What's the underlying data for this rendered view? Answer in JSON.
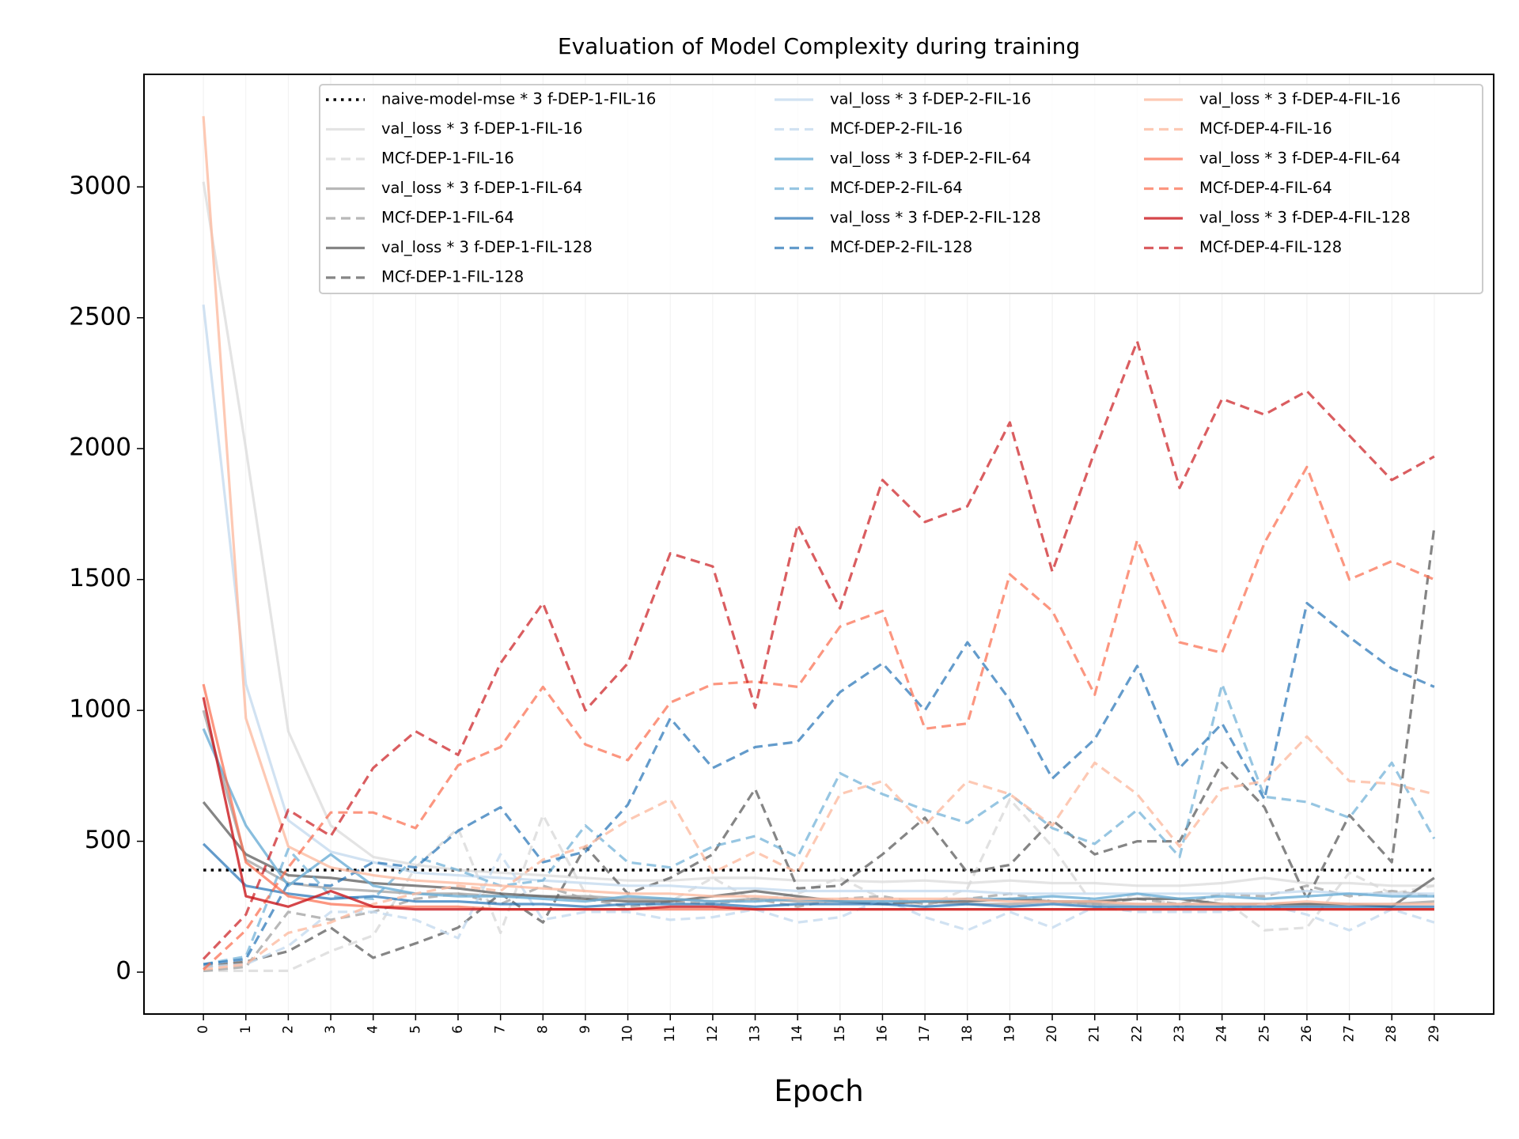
{
  "chart_data": {
    "type": "line",
    "title": "Evaluation of Model Complexity during training",
    "xlabel": "Epoch",
    "ylabel": "",
    "x": [
      0,
      1,
      2,
      3,
      4,
      5,
      6,
      7,
      8,
      9,
      10,
      11,
      12,
      13,
      14,
      15,
      16,
      17,
      18,
      19,
      20,
      21,
      22,
      23,
      24,
      25,
      26,
      27,
      28,
      29
    ],
    "xlim": [
      -1.4,
      30.4
    ],
    "ylim": [
      -160,
      3430
    ],
    "yticks": [
      0,
      500,
      1000,
      1500,
      2000,
      2500,
      3000
    ],
    "grid": "vertical",
    "legend_position": "upper-right",
    "legend_columns": 3,
    "series": [
      {
        "name": "naive-model-mse * 3 f-DEP-1-FIL-16",
        "color": "#000000",
        "dash": "dotted",
        "alpha": 1.0,
        "values": [
          390,
          390,
          390,
          390,
          390,
          390,
          390,
          390,
          390,
          390,
          390,
          390,
          390,
          390,
          390,
          390,
          390,
          390,
          390,
          390,
          390,
          390,
          390,
          390,
          390,
          390,
          390,
          390,
          390,
          390
        ]
      },
      {
        "name": "val_loss * 3 f-DEP-1-FIL-16",
        "color": "#d9d9d9",
        "dash": "solid",
        "alpha": 0.7,
        "values": [
          3020,
          2000,
          920,
          560,
          440,
          410,
          390,
          380,
          370,
          360,
          350,
          350,
          360,
          360,
          350,
          350,
          345,
          350,
          340,
          350,
          340,
          340,
          330,
          330,
          340,
          360,
          340,
          340,
          330,
          330
        ]
      },
      {
        "name": "MCf-DEP-1-FIL-16",
        "color": "#d9d9d9",
        "dash": "dashed",
        "alpha": 0.8,
        "values": [
          5,
          5,
          5,
          80,
          140,
          400,
          550,
          150,
          600,
          300,
          240,
          270,
          360,
          270,
          300,
          360,
          280,
          250,
          320,
          660,
          480,
          250,
          300,
          250,
          280,
          160,
          170,
          380,
          300,
          330
        ]
      },
      {
        "name": "val_loss * 3 f-DEP-1-FIL-64",
        "color": "#a6a6a6",
        "dash": "solid",
        "alpha": 0.8,
        "values": [
          1000,
          430,
          340,
          320,
          310,
          300,
          300,
          290,
          290,
          290,
          280,
          280,
          270,
          280,
          270,
          270,
          270,
          270,
          260,
          260,
          270,
          260,
          260,
          260,
          260,
          260,
          260,
          260,
          260,
          270
        ]
      },
      {
        "name": "MCf-DEP-1-FIL-64",
        "color": "#a6a6a6",
        "dash": "dashed",
        "alpha": 0.8,
        "values": [
          5,
          20,
          230,
          200,
          230,
          280,
          300,
          260,
          330,
          280,
          250,
          270,
          260,
          280,
          250,
          280,
          290,
          260,
          280,
          300,
          270,
          260,
          280,
          260,
          300,
          290,
          330,
          290,
          310,
          290
        ]
      },
      {
        "name": "val_loss * 3 f-DEP-1-FIL-128",
        "color": "#666666",
        "dash": "solid",
        "alpha": 0.8,
        "values": [
          650,
          450,
          370,
          360,
          340,
          330,
          320,
          300,
          290,
          280,
          270,
          270,
          290,
          310,
          290,
          270,
          260,
          270,
          270,
          280,
          270,
          270,
          280,
          280,
          260,
          260,
          260,
          260,
          250,
          360
        ]
      },
      {
        "name": "MCf-DEP-1-FIL-128",
        "color": "#666666",
        "dash": "dashed",
        "alpha": 0.8,
        "values": [
          20,
          40,
          80,
          170,
          55,
          110,
          170,
          300,
          190,
          480,
          300,
          360,
          450,
          700,
          320,
          330,
          450,
          590,
          380,
          410,
          580,
          450,
          500,
          500,
          800,
          630,
          280,
          600,
          420,
          1700
        ]
      },
      {
        "name": "val_loss * 3 f-DEP-2-FIL-16",
        "color": "#c6dbef",
        "dash": "solid",
        "alpha": 0.8,
        "values": [
          2550,
          1100,
          580,
          460,
          420,
          380,
          370,
          360,
          350,
          340,
          330,
          330,
          320,
          320,
          310,
          310,
          310,
          310,
          310,
          300,
          300,
          300,
          300,
          300,
          300,
          300,
          310,
          300,
          300,
          300
        ]
      },
      {
        "name": "MCf-DEP-2-FIL-16",
        "color": "#c6dbef",
        "dash": "dashed",
        "alpha": 0.8,
        "values": [
          20,
          30,
          100,
          230,
          230,
          200,
          130,
          450,
          200,
          230,
          230,
          200,
          210,
          240,
          190,
          210,
          280,
          210,
          160,
          230,
          170,
          250,
          230,
          230,
          230,
          260,
          220,
          160,
          240,
          190
        ]
      },
      {
        "name": "val_loss * 3 f-DEP-2-FIL-64",
        "color": "#6baed6",
        "dash": "solid",
        "alpha": 0.8,
        "values": [
          930,
          560,
          330,
          450,
          330,
          300,
          290,
          290,
          280,
          270,
          290,
          280,
          270,
          270,
          280,
          270,
          270,
          270,
          280,
          280,
          290,
          280,
          300,
          280,
          290,
          280,
          290,
          300,
          290,
          290
        ]
      },
      {
        "name": "MCf-DEP-2-FIL-64",
        "color": "#6baed6",
        "dash": "dashed",
        "alpha": 0.7,
        "values": [
          30,
          60,
          470,
          290,
          280,
          440,
          390,
          330,
          350,
          560,
          420,
          400,
          480,
          520,
          440,
          760,
          680,
          620,
          570,
          680,
          550,
          490,
          620,
          440,
          1100,
          670,
          650,
          590,
          800,
          510
        ]
      },
      {
        "name": "val_loss * 3 f-DEP-2-FIL-128",
        "color": "#2171b5",
        "dash": "solid",
        "alpha": 0.7,
        "values": [
          490,
          330,
          300,
          280,
          290,
          270,
          270,
          260,
          260,
          250,
          260,
          260,
          260,
          250,
          260,
          260,
          260,
          250,
          260,
          250,
          260,
          250,
          250,
          250,
          250,
          250,
          250,
          250,
          250,
          250
        ]
      },
      {
        "name": "MCf-DEP-2-FIL-128",
        "color": "#2171b5",
        "dash": "dashed",
        "alpha": 0.7,
        "values": [
          30,
          50,
          340,
          330,
          420,
          400,
          540,
          630,
          420,
          460,
          640,
          970,
          780,
          860,
          880,
          1070,
          1180,
          1000,
          1260,
          1040,
          740,
          890,
          1170,
          780,
          950,
          660,
          1410,
          1280,
          1160,
          1090
        ]
      },
      {
        "name": "val_loss * 3 f-DEP-4-FIL-16",
        "color": "#fcbba1",
        "dash": "solid",
        "alpha": 0.8,
        "values": [
          3270,
          970,
          480,
          400,
          370,
          350,
          340,
          330,
          320,
          310,
          300,
          300,
          290,
          290,
          280,
          280,
          280,
          280,
          280,
          270,
          270,
          270,
          260,
          260,
          260,
          260,
          270,
          260,
          260,
          260
        ]
      },
      {
        "name": "MCf-DEP-4-FIL-16",
        "color": "#fcbba1",
        "dash": "dashed",
        "alpha": 0.8,
        "values": [
          10,
          30,
          150,
          190,
          260,
          300,
          330,
          310,
          430,
          480,
          580,
          660,
          380,
          460,
          380,
          680,
          730,
          560,
          730,
          680,
          560,
          800,
          680,
          480,
          700,
          730,
          900,
          730,
          720,
          680
        ]
      },
      {
        "name": "val_loss * 3 f-DEP-4-FIL-64",
        "color": "#fb6a4a",
        "dash": "solid",
        "alpha": 0.7,
        "values": [
          1100,
          420,
          290,
          260,
          250,
          250,
          250,
          240,
          240,
          240,
          240,
          240,
          240,
          240,
          240,
          240,
          240,
          240,
          240,
          240,
          240,
          240,
          240,
          240,
          240,
          240,
          240,
          240,
          240,
          240
        ]
      },
      {
        "name": "MCf-DEP-4-FIL-64",
        "color": "#fb6a4a",
        "dash": "dashed",
        "alpha": 0.7,
        "values": [
          10,
          160,
          400,
          610,
          610,
          550,
          790,
          860,
          1090,
          870,
          810,
          1030,
          1100,
          1110,
          1090,
          1320,
          1380,
          930,
          950,
          1520,
          1380,
          1060,
          1650,
          1260,
          1220,
          1640,
          1930,
          1500,
          1570,
          1500
        ]
      },
      {
        "name": "val_loss * 3 f-DEP-4-FIL-128",
        "color": "#cb181d",
        "dash": "solid",
        "alpha": 0.8,
        "values": [
          1050,
          290,
          250,
          310,
          250,
          240,
          240,
          240,
          240,
          240,
          240,
          250,
          250,
          240,
          240,
          240,
          240,
          240,
          240,
          240,
          240,
          240,
          240,
          240,
          240,
          240,
          240,
          240,
          240,
          240
        ]
      },
      {
        "name": "MCf-DEP-4-FIL-128",
        "color": "#cb181d",
        "dash": "dashed",
        "alpha": 0.7,
        "values": [
          50,
          220,
          620,
          520,
          780,
          920,
          830,
          1180,
          1410,
          1000,
          1180,
          1600,
          1550,
          1010,
          1710,
          1390,
          1880,
          1720,
          1780,
          2100,
          1530,
          1990,
          2410,
          1850,
          2190,
          2130,
          2220,
          2050,
          1880,
          1970
        ]
      }
    ]
  }
}
